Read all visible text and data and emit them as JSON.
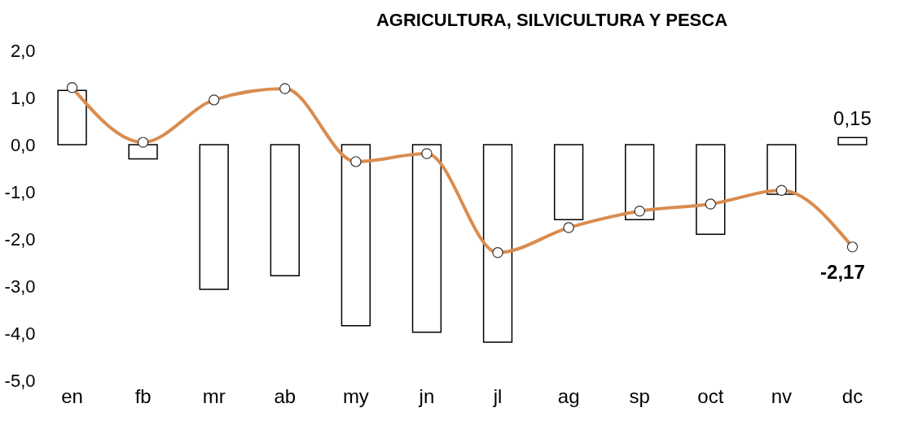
{
  "chart_data": {
    "type": "bar",
    "title": "AGRICULTURA, SILVICULTURA Y PESCA",
    "categories": [
      "en",
      "fb",
      "mr",
      "ab",
      "my",
      "jn",
      "jl",
      "ag",
      "sp",
      "oct",
      "nv",
      "dc"
    ],
    "series": [
      {
        "color": "#ffffff",
        "values": [
          1.15,
          -0.3,
          -3.07,
          -2.78,
          -3.84,
          -3.98,
          -4.19,
          -1.59,
          -1.59,
          -1.9,
          -1.05,
          0.15
        ],
        "value_labels": [
          null,
          null,
          null,
          null,
          null,
          null,
          null,
          null,
          null,
          null,
          null,
          "0,15"
        ]
      },
      {
        "type": "line",
        "color": "#d98c4f",
        "marker": "circle",
        "values": [
          1.21,
          0.05,
          0.95,
          1.19,
          -0.36,
          -0.19,
          -2.29,
          -1.76,
          -1.41,
          -1.26,
          -0.97,
          -2.17
        ],
        "value_labels": [
          null,
          null,
          null,
          null,
          null,
          null,
          null,
          null,
          null,
          null,
          null,
          "-2,17"
        ]
      }
    ],
    "ylim": [
      -5,
      2
    ],
    "yticks": [
      {
        "value": -5,
        "label": "-5,0"
      },
      {
        "value": -4,
        "label": "-4,0"
      },
      {
        "value": -3,
        "label": "-3,0"
      },
      {
        "value": -2,
        "label": "-2,0"
      },
      {
        "value": -1,
        "label": "-1,0"
      },
      {
        "value": 0,
        "label": "0,0"
      },
      {
        "value": 1,
        "label": "1,0"
      },
      {
        "value": 2,
        "label": "2,0"
      }
    ],
    "grid": false
  }
}
